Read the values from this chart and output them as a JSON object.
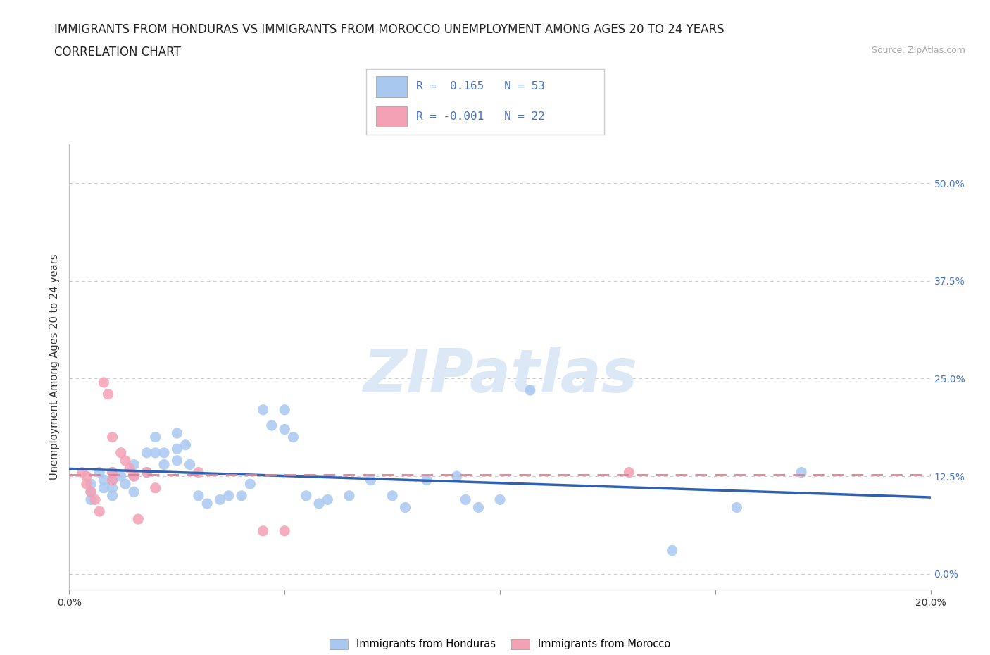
{
  "title_line1": "IMMIGRANTS FROM HONDURAS VS IMMIGRANTS FROM MOROCCO UNEMPLOYMENT AMONG AGES 20 TO 24 YEARS",
  "title_line2": "CORRELATION CHART",
  "source_text": "Source: ZipAtlas.com",
  "ylabel": "Unemployment Among Ages 20 to 24 years",
  "xlim": [
    0.0,
    0.2
  ],
  "ylim": [
    -0.02,
    0.55
  ],
  "yticks": [
    0.0,
    0.125,
    0.25,
    0.375,
    0.5
  ],
  "ytick_labels": [
    "0.0%",
    "12.5%",
    "25.0%",
    "37.5%",
    "50.0%"
  ],
  "xticks": [
    0.0,
    0.05,
    0.1,
    0.15,
    0.2
  ],
  "xtick_labels": [
    "0.0%",
    "",
    "",
    "",
    "20.0%"
  ],
  "color_honduras": "#a8c8f0",
  "color_morocco": "#f4a0b5",
  "color_regression_honduras": "#3060b0",
  "color_regression_morocco": "#e08090",
  "watermark_text": "ZIPatlas",
  "watermark_color": "#dce8f5",
  "honduras_scatter": [
    [
      0.005,
      0.115
    ],
    [
      0.005,
      0.105
    ],
    [
      0.005,
      0.095
    ],
    [
      0.007,
      0.13
    ],
    [
      0.008,
      0.12
    ],
    [
      0.008,
      0.11
    ],
    [
      0.01,
      0.13
    ],
    [
      0.01,
      0.12
    ],
    [
      0.01,
      0.11
    ],
    [
      0.01,
      0.1
    ],
    [
      0.012,
      0.125
    ],
    [
      0.013,
      0.115
    ],
    [
      0.015,
      0.14
    ],
    [
      0.015,
      0.125
    ],
    [
      0.015,
      0.105
    ],
    [
      0.018,
      0.155
    ],
    [
      0.018,
      0.13
    ],
    [
      0.02,
      0.175
    ],
    [
      0.02,
      0.155
    ],
    [
      0.022,
      0.155
    ],
    [
      0.022,
      0.14
    ],
    [
      0.025,
      0.18
    ],
    [
      0.025,
      0.16
    ],
    [
      0.025,
      0.145
    ],
    [
      0.027,
      0.165
    ],
    [
      0.028,
      0.14
    ],
    [
      0.03,
      0.1
    ],
    [
      0.032,
      0.09
    ],
    [
      0.035,
      0.095
    ],
    [
      0.037,
      0.1
    ],
    [
      0.04,
      0.1
    ],
    [
      0.042,
      0.115
    ],
    [
      0.045,
      0.21
    ],
    [
      0.047,
      0.19
    ],
    [
      0.05,
      0.21
    ],
    [
      0.05,
      0.185
    ],
    [
      0.052,
      0.175
    ],
    [
      0.055,
      0.1
    ],
    [
      0.058,
      0.09
    ],
    [
      0.06,
      0.095
    ],
    [
      0.065,
      0.1
    ],
    [
      0.07,
      0.12
    ],
    [
      0.075,
      0.1
    ],
    [
      0.078,
      0.085
    ],
    [
      0.083,
      0.12
    ],
    [
      0.09,
      0.125
    ],
    [
      0.092,
      0.095
    ],
    [
      0.095,
      0.085
    ],
    [
      0.1,
      0.095
    ],
    [
      0.107,
      0.235
    ],
    [
      0.14,
      0.03
    ],
    [
      0.155,
      0.085
    ],
    [
      0.17,
      0.13
    ]
  ],
  "morocco_scatter": [
    [
      0.003,
      0.13
    ],
    [
      0.004,
      0.125
    ],
    [
      0.004,
      0.115
    ],
    [
      0.005,
      0.105
    ],
    [
      0.006,
      0.095
    ],
    [
      0.007,
      0.08
    ],
    [
      0.008,
      0.245
    ],
    [
      0.009,
      0.23
    ],
    [
      0.01,
      0.175
    ],
    [
      0.01,
      0.13
    ],
    [
      0.01,
      0.12
    ],
    [
      0.012,
      0.155
    ],
    [
      0.013,
      0.145
    ],
    [
      0.014,
      0.135
    ],
    [
      0.015,
      0.125
    ],
    [
      0.016,
      0.07
    ],
    [
      0.018,
      0.13
    ],
    [
      0.02,
      0.11
    ],
    [
      0.03,
      0.13
    ],
    [
      0.045,
      0.055
    ],
    [
      0.05,
      0.055
    ],
    [
      0.13,
      0.13
    ]
  ],
  "background_color": "#ffffff",
  "grid_color": "#cccccc",
  "title_fontsize": 12,
  "axis_label_fontsize": 10.5,
  "tick_fontsize": 10,
  "legend_fontsize": 12
}
